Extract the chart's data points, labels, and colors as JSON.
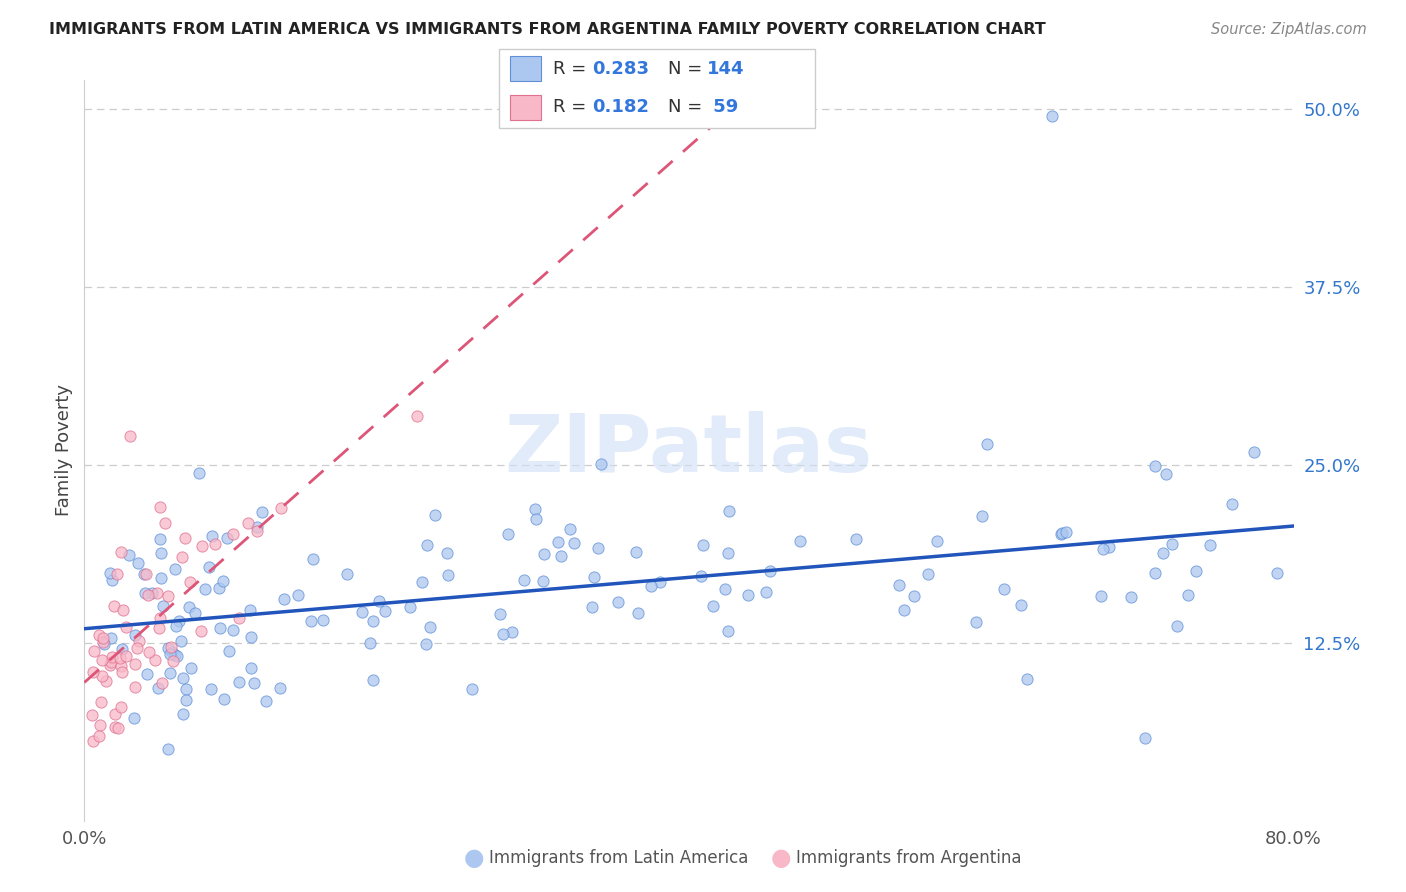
{
  "title": "IMMIGRANTS FROM LATIN AMERICA VS IMMIGRANTS FROM ARGENTINA FAMILY POVERTY CORRELATION CHART",
  "source": "Source: ZipAtlas.com",
  "ylabel": "Family Poverty",
  "x_min": 0.0,
  "x_max": 0.8,
  "y_min": 0.0,
  "y_max": 0.52,
  "y_ticks": [
    0.125,
    0.25,
    0.375,
    0.5
  ],
  "y_tick_labels": [
    "12.5%",
    "25.0%",
    "37.5%",
    "50.0%"
  ],
  "blue_R": 0.283,
  "blue_N": 144,
  "pink_R": 0.182,
  "pink_N": 59,
  "blue_fill_color": "#adc8f0",
  "pink_fill_color": "#f8b8c8",
  "blue_edge_color": "#6090d8",
  "pink_edge_color": "#e07090",
  "blue_line_color": "#2255bb",
  "pink_line_color": "#dd5577",
  "watermark_color": "#d0dff5",
  "grid_color": "#cccccc",
  "legend_items": [
    "Immigrants from Latin America",
    "Immigrants from Argentina"
  ],
  "title_color": "#222222",
  "source_color": "#888888",
  "ylabel_color": "#444444",
  "ytick_color": "#3377cc",
  "xtick_color": "#555555"
}
